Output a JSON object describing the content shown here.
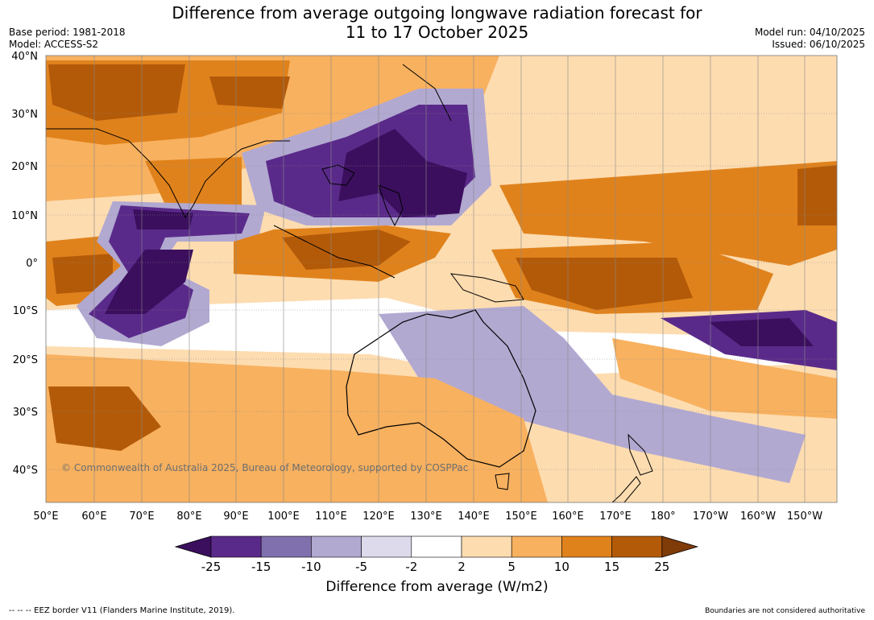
{
  "title_line1": "Difference from average outgoing longwave radiation forecast for",
  "title_line2": "11 to 17 October 2025",
  "base_period": "Base period: 1981-2018",
  "model": "Model: ACCESS-S2",
  "model_run": "Model run: 04/10/2025",
  "issued": "Issued: 06/10/2025",
  "lat_labels": [
    "40°N",
    "30°N",
    "20°N",
    "10°N",
    "0°",
    "10°S",
    "20°S",
    "30°S",
    "40°S"
  ],
  "lon_labels": [
    "50°E",
    "60°E",
    "70°E",
    "80°E",
    "90°E",
    "100°E",
    "110°E",
    "120°E",
    "130°E",
    "140°E",
    "150°E",
    "160°E",
    "170°E",
    "180°",
    "170°W",
    "160°W",
    "150°W"
  ],
  "copyright": "© Commonwealth of Australia 2025, Bureau of Meteorology, supported by COSPPac",
  "colorbar": {
    "ticks": [
      "-25",
      "-15",
      "-10",
      "-5",
      "-2",
      "2",
      "5",
      "10",
      "15",
      "25"
    ],
    "colors": [
      "#3b0f5e",
      "#5a2a8a",
      "#8070ad",
      "#b2a9d1",
      "#dcdaeb",
      "#ffffff",
      "#fddcb0",
      "#f8b15f",
      "#e0821c",
      "#b35a09",
      "#7f3b08"
    ],
    "label": "Difference from average (W/m2)"
  },
  "footer_left": "--  --  -- EEZ border V11 (Flanders Marine Institute, 2019).",
  "footer_right": "Boundaries are not considered authoritative"
}
